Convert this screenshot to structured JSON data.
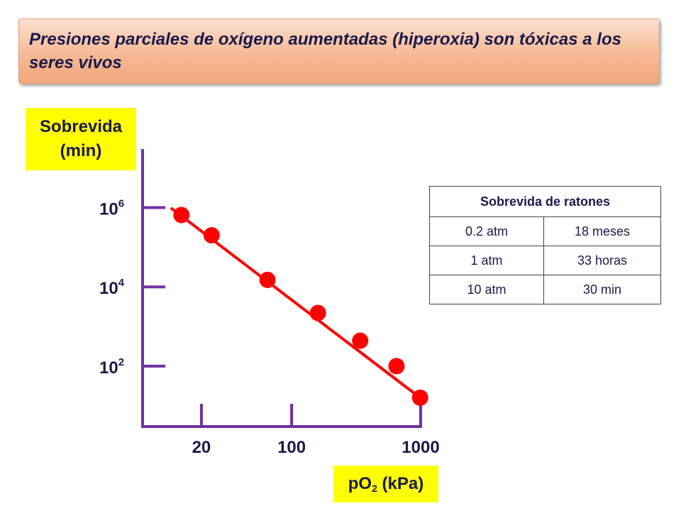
{
  "title": "Presiones parciales de oxígeno aumentadas (hiperoxia) son tóxicas a los seres vivos",
  "y_label_lines": [
    "Sobrevida",
    "(min)"
  ],
  "x_label": {
    "base": "pO",
    "sub": "2",
    "rest": " (kPa)"
  },
  "colors": {
    "axis": "#7030a0",
    "series": "#ff0000",
    "highlight": "#ffff00",
    "title_bg": "#f6b994"
  },
  "table": {
    "header": "Sobrevida de ratones",
    "rows": [
      {
        "pressure": "0.2 atm",
        "survival": "18 meses"
      },
      {
        "pressure": "1 atm",
        "survival": "33 horas"
      },
      {
        "pressure": "10 atm",
        "survival": "30 min"
      }
    ]
  },
  "chart_data": {
    "type": "line",
    "xscale": "log",
    "yscale": "log",
    "xlim": [
      7,
      1000
    ],
    "ylim": [
      3,
      30000000
    ],
    "x_ticks": [
      {
        "value": 20,
        "label": "20"
      },
      {
        "value": 100,
        "label": "100"
      },
      {
        "value": 1000,
        "label": "1000"
      }
    ],
    "y_ticks": [
      {
        "value": 100,
        "base": "10",
        "exp": "2"
      },
      {
        "value": 10000,
        "base": "10",
        "exp": "4"
      },
      {
        "value": 1000000,
        "base": "10",
        "exp": "6"
      }
    ],
    "grid": false,
    "series": [
      {
        "x": [
          14,
          24,
          65,
          160,
          340,
          650,
          990
        ],
        "y": [
          650000,
          200000,
          15000,
          2200,
          440,
          100,
          16
        ]
      }
    ]
  }
}
